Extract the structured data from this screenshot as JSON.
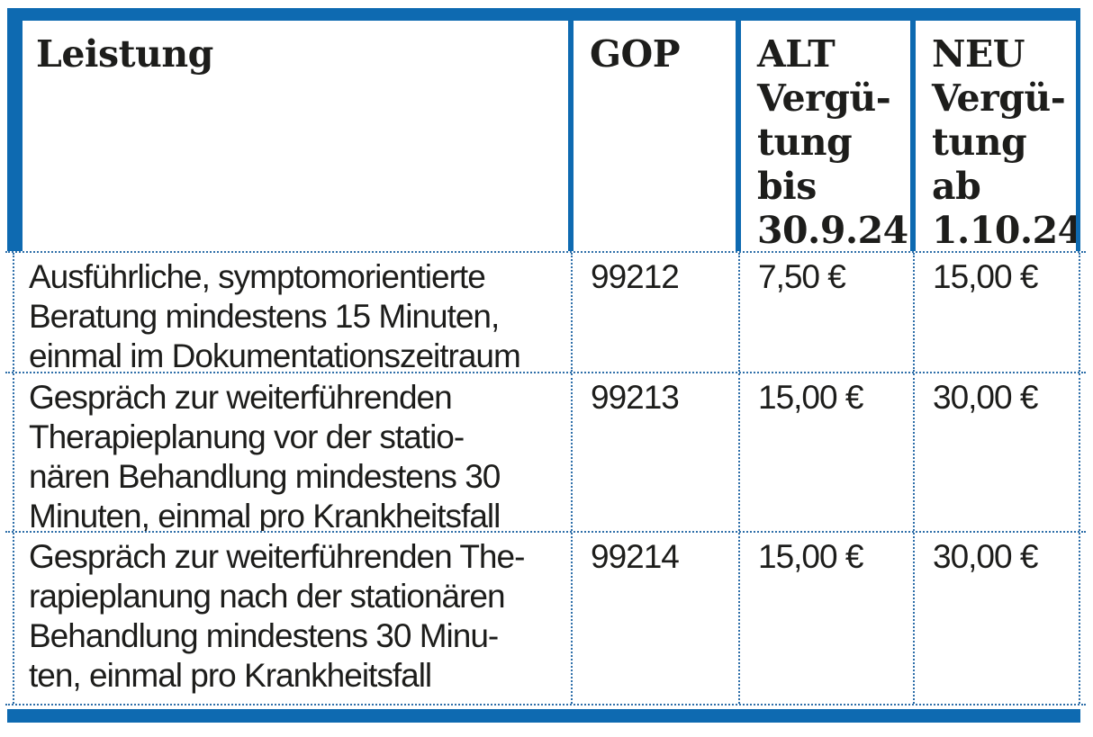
{
  "table": {
    "header": {
      "leistung": "Leistung",
      "gop": "GOP",
      "alt": "ALT\nVergü-\ntung\nbis\n30.9.24",
      "neu": "NEU\nVergü-\ntung\nab\n1.10.24"
    },
    "rows": [
      {
        "leistung": "Ausführliche, symptomorientierte\nBeratung mindestens 15 Minuten,\neinmal im Dokumentationszeitraum",
        "gop": "99212",
        "alt": "7,50 €",
        "neu": "15,00 €"
      },
      {
        "leistung": "Gespräch zur weiterführenden\nTherapieplanung vor der statio-\nnären Behandlung mindestens 30\nMinuten, einmal pro Krankheitsfall",
        "gop": "99213",
        "alt": "15,00 €",
        "neu": "30,00 €"
      },
      {
        "leistung": "Gespräch zur weiterführenden The-\nrapieplanung nach der stationären\nBehandlung mindestens 30 Minu-\nten, einmal pro Krankheitsfall",
        "gop": "99214",
        "alt": "15,00 €",
        "neu": "30,00 €"
      }
    ]
  },
  "colors": {
    "accent_blue": "#0e6ab1",
    "divider_blue": "#2f6fa9",
    "text": "#1d1d1b"
  }
}
